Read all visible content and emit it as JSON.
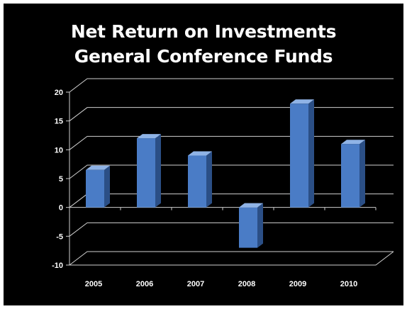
{
  "chart_data": {
    "type": "bar",
    "title_lines": [
      "Net Return on Investments",
      "General Conference Funds"
    ],
    "categories": [
      "2005",
      "2006",
      "2007",
      "2008",
      "2009",
      "2010"
    ],
    "series": [
      {
        "values": [
          6.5,
          12.0,
          9.0,
          -7.0,
          18.0,
          11.0
        ]
      }
    ],
    "xlabel": "",
    "ylabel": "",
    "ylim": [
      -10,
      20
    ],
    "yticks": [
      -10,
      -5,
      0,
      5,
      10,
      15,
      20
    ],
    "grid": true,
    "legend": "none",
    "style": "3d-column",
    "colors": {
      "background": "#000000",
      "bar_front": "#4a7cc6",
      "bar_side": "#2b4f86",
      "bar_top": "#8fb3e6",
      "gridline": "#cfcfcf",
      "text": "#ffffff"
    }
  }
}
